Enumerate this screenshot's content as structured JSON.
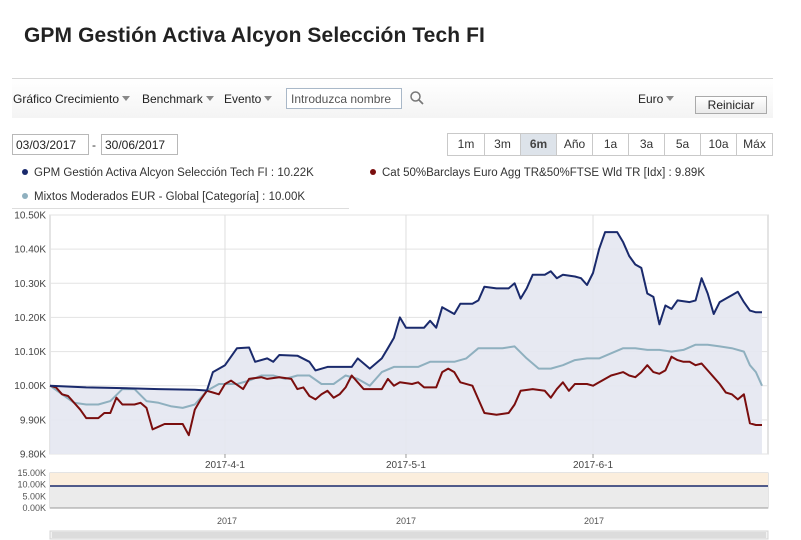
{
  "page": {
    "title": "GPM Gestión Activa Alcyon Selección Tech FI"
  },
  "toolbar": {
    "growth_label": "Gráfico Crecimiento",
    "benchmark_label": "Benchmark",
    "event_label": "Evento",
    "search_placeholder": "Introduzca nombre",
    "currency_label": "Euro",
    "reset_label": "Reiniciar"
  },
  "dates": {
    "start": "03/03/2017",
    "separator": "-",
    "end": "30/06/2017"
  },
  "range_buttons": [
    "1m",
    "3m",
    "6m",
    "Año",
    "1a",
    "3a",
    "5a",
    "10a",
    "Máx"
  ],
  "active_range": "6m",
  "legend": [
    {
      "label": "GPM Gestión Activa Alcyon Selección Tech FI : 10.22K",
      "color": "#1a2a6c"
    },
    {
      "label": "Cat 50%Barclays Euro Agg TR&50%FTSE Wld TR [Idx] : 9.89K",
      "color": "#7a0e0e"
    },
    {
      "label": "Mixtos Moderados EUR - Global [Categoría] : 10.00K",
      "color": "#8fb0bf"
    }
  ],
  "chart_data": {
    "type": "line",
    "ylim": [
      9800,
      10500
    ],
    "y_ticks": [
      9800,
      9900,
      10000,
      10100,
      10200,
      10300,
      10400,
      10500
    ],
    "y_tick_labels": [
      "9.80K",
      "9.90K",
      "10.00K",
      "10.10K",
      "10.20K",
      "10.30K",
      "10.40K",
      "10.50K"
    ],
    "x_ticks": [
      {
        "label": "2017-4-1",
        "day": 29
      },
      {
        "label": "2017-5-1",
        "day": 59
      },
      {
        "label": "2017-6-1",
        "day": 90
      }
    ],
    "xlim": [
      0,
      119
    ],
    "series": [
      {
        "name": "GPM Gestión Activa Alcyon Selección Tech FI",
        "color": "#1a2a6c",
        "points": [
          [
            0,
            10000
          ],
          [
            6,
            9995
          ],
          [
            12,
            9993
          ],
          [
            18,
            9990
          ],
          [
            24,
            9988
          ],
          [
            26,
            9986
          ],
          [
            27,
            10040
          ],
          [
            29,
            10060
          ],
          [
            31,
            10110
          ],
          [
            33,
            10112
          ],
          [
            34,
            10070
          ],
          [
            36,
            10080
          ],
          [
            37,
            10070
          ],
          [
            38,
            10090
          ],
          [
            41,
            10088
          ],
          [
            43,
            10070
          ],
          [
            44,
            10045
          ],
          [
            46,
            10055
          ],
          [
            50,
            10055
          ],
          [
            51,
            10080
          ],
          [
            53,
            10050
          ],
          [
            55,
            10080
          ],
          [
            56,
            10110
          ],
          [
            57,
            10140
          ],
          [
            58,
            10200
          ],
          [
            59,
            10170
          ],
          [
            62,
            10170
          ],
          [
            63,
            10190
          ],
          [
            64,
            10170
          ],
          [
            65,
            10230
          ],
          [
            67,
            10210
          ],
          [
            68,
            10240
          ],
          [
            70,
            10240
          ],
          [
            71,
            10250
          ],
          [
            72,
            10290
          ],
          [
            74,
            10285
          ],
          [
            76,
            10285
          ],
          [
            77,
            10300
          ],
          [
            78,
            10255
          ],
          [
            79,
            10285
          ],
          [
            80,
            10325
          ],
          [
            82,
            10325
          ],
          [
            83,
            10335
          ],
          [
            84,
            10315
          ],
          [
            85,
            10325
          ],
          [
            87,
            10320
          ],
          [
            88,
            10315
          ],
          [
            89,
            10295
          ],
          [
            90,
            10330
          ],
          [
            91,
            10400
          ],
          [
            92,
            10450
          ],
          [
            94,
            10450
          ],
          [
            95,
            10420
          ],
          [
            96,
            10380
          ],
          [
            97,
            10355
          ],
          [
            98,
            10345
          ],
          [
            99,
            10270
          ],
          [
            100,
            10260
          ],
          [
            101,
            10180
          ],
          [
            102,
            10235
          ],
          [
            103,
            10225
          ],
          [
            104,
            10250
          ],
          [
            106,
            10245
          ],
          [
            107,
            10250
          ],
          [
            108,
            10315
          ],
          [
            109,
            10270
          ],
          [
            110,
            10210
          ],
          [
            111,
            10245
          ],
          [
            112,
            10255
          ],
          [
            113,
            10265
          ],
          [
            114,
            10275
          ],
          [
            115,
            10245
          ],
          [
            116,
            10220
          ],
          [
            117,
            10215
          ],
          [
            118,
            10215
          ]
        ]
      },
      {
        "name": "Cat 50%Barclays Euro Agg TR&50%FTSE Wld TR [Idx]",
        "color": "#7a0e0e",
        "points": [
          [
            0,
            10000
          ],
          [
            1,
            9995
          ],
          [
            2,
            9975
          ],
          [
            3,
            9970
          ],
          [
            5,
            9930
          ],
          [
            6,
            9905
          ],
          [
            8,
            9905
          ],
          [
            9,
            9920
          ],
          [
            10,
            9920
          ],
          [
            11,
            9965
          ],
          [
            12,
            9945
          ],
          [
            14,
            9945
          ],
          [
            15,
            9950
          ],
          [
            16,
            9935
          ],
          [
            17,
            9872
          ],
          [
            18,
            9880
          ],
          [
            19,
            9888
          ],
          [
            21,
            9888
          ],
          [
            22,
            9888
          ],
          [
            23,
            9855
          ],
          [
            24,
            9930
          ],
          [
            25,
            9960
          ],
          [
            26,
            9985
          ],
          [
            27,
            9980
          ],
          [
            28,
            9975
          ],
          [
            29,
            10005
          ],
          [
            30,
            10015
          ],
          [
            32,
            9990
          ],
          [
            33,
            10020
          ],
          [
            35,
            10025
          ],
          [
            36,
            10020
          ],
          [
            38,
            10025
          ],
          [
            40,
            10020
          ],
          [
            41,
            9990
          ],
          [
            42,
            9995
          ],
          [
            43,
            9970
          ],
          [
            44,
            9960
          ],
          [
            45,
            9975
          ],
          [
            46,
            9985
          ],
          [
            47,
            9965
          ],
          [
            48,
            9975
          ],
          [
            49,
            9995
          ],
          [
            50,
            10030
          ],
          [
            51,
            10010
          ],
          [
            52,
            9990
          ],
          [
            55,
            9990
          ],
          [
            56,
            10020
          ],
          [
            57,
            10000
          ],
          [
            58,
            10010
          ],
          [
            60,
            10005
          ],
          [
            61,
            10010
          ],
          [
            62,
            9995
          ],
          [
            64,
            9995
          ],
          [
            65,
            10040
          ],
          [
            66,
            10050
          ],
          [
            67,
            10040
          ],
          [
            68,
            10010
          ],
          [
            70,
            10000
          ],
          [
            71,
            9960
          ],
          [
            72,
            9920
          ],
          [
            74,
            9915
          ],
          [
            76,
            9920
          ],
          [
            77,
            9945
          ],
          [
            78,
            9985
          ],
          [
            80,
            9990
          ],
          [
            82,
            9985
          ],
          [
            83,
            9965
          ],
          [
            84,
            9990
          ],
          [
            85,
            10010
          ],
          [
            86,
            9985
          ],
          [
            87,
            10005
          ],
          [
            89,
            10005
          ],
          [
            90,
            10000
          ],
          [
            91,
            10010
          ],
          [
            92,
            10020
          ],
          [
            93,
            10030
          ],
          [
            94,
            10035
          ],
          [
            95,
            10040
          ],
          [
            96,
            10030
          ],
          [
            97,
            10025
          ],
          [
            98,
            10040
          ],
          [
            99,
            10060
          ],
          [
            100,
            10040
          ],
          [
            101,
            10035
          ],
          [
            102,
            10045
          ],
          [
            103,
            10085
          ],
          [
            104,
            10075
          ],
          [
            105,
            10070
          ],
          [
            106,
            10070
          ],
          [
            107,
            10060
          ],
          [
            108,
            10065
          ],
          [
            109,
            10045
          ],
          [
            110,
            10025
          ],
          [
            111,
            10005
          ],
          [
            112,
            9980
          ],
          [
            113,
            9975
          ],
          [
            114,
            9960
          ],
          [
            115,
            9975
          ],
          [
            116,
            9890
          ],
          [
            117,
            9885
          ],
          [
            118,
            9885
          ]
        ]
      },
      {
        "name": "Mixtos Moderados EUR - Global [Categoría]",
        "color": "#8fb0bf",
        "points": [
          [
            0,
            10000
          ],
          [
            2,
            9975
          ],
          [
            4,
            9950
          ],
          [
            6,
            9945
          ],
          [
            8,
            9945
          ],
          [
            10,
            9955
          ],
          [
            12,
            9990
          ],
          [
            14,
            9990
          ],
          [
            16,
            9955
          ],
          [
            18,
            9950
          ],
          [
            20,
            9940
          ],
          [
            22,
            9935
          ],
          [
            24,
            9945
          ],
          [
            26,
            9985
          ],
          [
            28,
            10005
          ],
          [
            31,
            10005
          ],
          [
            33,
            10015
          ],
          [
            35,
            10030
          ],
          [
            37,
            10030
          ],
          [
            39,
            10020
          ],
          [
            41,
            10030
          ],
          [
            43,
            10030
          ],
          [
            45,
            10005
          ],
          [
            47,
            10005
          ],
          [
            49,
            10030
          ],
          [
            51,
            10020
          ],
          [
            53,
            10000
          ],
          [
            55,
            10040
          ],
          [
            57,
            10055
          ],
          [
            59,
            10055
          ],
          [
            61,
            10055
          ],
          [
            63,
            10070
          ],
          [
            65,
            10070
          ],
          [
            67,
            10070
          ],
          [
            69,
            10080
          ],
          [
            71,
            10110
          ],
          [
            73,
            10110
          ],
          [
            75,
            10110
          ],
          [
            77,
            10115
          ],
          [
            79,
            10080
          ],
          [
            81,
            10050
          ],
          [
            83,
            10050
          ],
          [
            85,
            10060
          ],
          [
            87,
            10075
          ],
          [
            89,
            10080
          ],
          [
            91,
            10080
          ],
          [
            93,
            10095
          ],
          [
            95,
            10110
          ],
          [
            97,
            10110
          ],
          [
            99,
            10105
          ],
          [
            101,
            10105
          ],
          [
            103,
            10100
          ],
          [
            105,
            10105
          ],
          [
            107,
            10120
          ],
          [
            109,
            10120
          ],
          [
            111,
            10115
          ],
          [
            113,
            10110
          ],
          [
            115,
            10100
          ],
          [
            116,
            10060
          ],
          [
            117,
            10040
          ],
          [
            118,
            10000
          ]
        ]
      }
    ],
    "navigator": {
      "y_tick_labels": [
        "15.00K",
        "10.00K",
        "5.00K",
        "0.00K"
      ],
      "x_tick_labels": [
        "2017",
        "2017",
        "2017"
      ]
    }
  }
}
